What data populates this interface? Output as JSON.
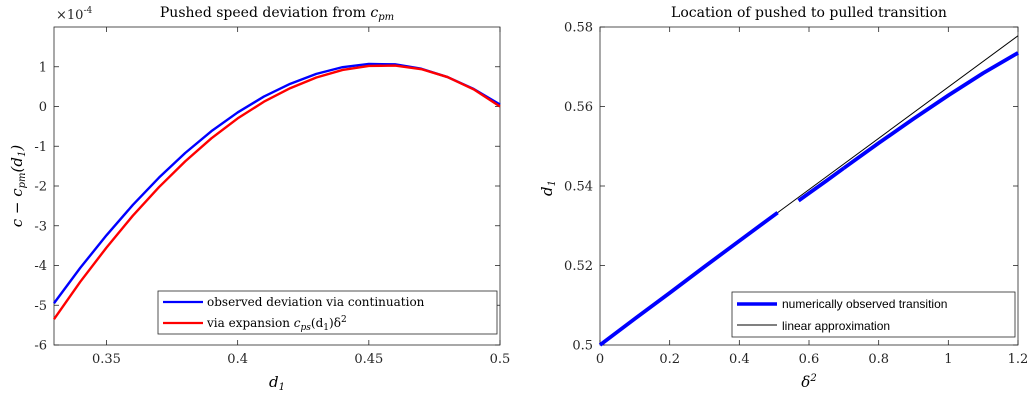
{
  "chart_data": [
    {
      "type": "line",
      "title": "Pushed speed deviation from c_pm",
      "title_main": "Pushed speed deviation from ",
      "title_math": "c",
      "title_sub": "pm",
      "xlabel": "d1",
      "xlabel_main": "d",
      "xlabel_sub": "1",
      "ylabel": "c − c_pm(d1)",
      "ylabel_parts": [
        "c − c",
        "pm",
        "(d",
        "1",
        ")"
      ],
      "exponent_label": "×10",
      "exponent_power": "-4",
      "xlim": [
        0.33,
        0.5
      ],
      "ylim": [
        -6,
        2
      ],
      "xticks": [
        0.35,
        0.4,
        0.45,
        0.5
      ],
      "xtick_labels": [
        "0.35",
        "0.4",
        "0.45",
        "0.5"
      ],
      "yticks": [
        -6,
        -5,
        -4,
        -3,
        -2,
        -1,
        0,
        1
      ],
      "ytick_labels": [
        "-6",
        "-5",
        "-4",
        "-3",
        "-2",
        "-1",
        "0",
        "1"
      ],
      "grid": false,
      "legend_position": "bottom-right",
      "series": [
        {
          "name": "observed deviation via continuation",
          "color": "#0000ff",
          "x": [
            0.33,
            0.34,
            0.35,
            0.36,
            0.37,
            0.38,
            0.39,
            0.4,
            0.41,
            0.42,
            0.43,
            0.44,
            0.45,
            0.46,
            0.47,
            0.48,
            0.49,
            0.5
          ],
          "y": [
            -4.95,
            -4.06,
            -3.24,
            -2.48,
            -1.79,
            -1.17,
            -0.62,
            -0.15,
            0.25,
            0.57,
            0.82,
            0.99,
            1.07,
            1.06,
            0.95,
            0.74,
            0.44,
            0.05
          ]
        },
        {
          "name": "via expansion c_ps(d1)δ²",
          "name_parts": [
            "via expansion ",
            "c",
            "ps",
            "(d",
            "1",
            ")δ",
            "2"
          ],
          "color": "#ff0000",
          "x": [
            0.33,
            0.34,
            0.35,
            0.36,
            0.37,
            0.38,
            0.39,
            0.4,
            0.41,
            0.42,
            0.43,
            0.44,
            0.45,
            0.46,
            0.47,
            0.48,
            0.49,
            0.5
          ],
          "y": [
            -5.35,
            -4.41,
            -3.55,
            -2.75,
            -2.03,
            -1.38,
            -0.8,
            -0.3,
            0.12,
            0.46,
            0.73,
            0.92,
            1.02,
            1.03,
            0.94,
            0.74,
            0.43,
            0.0
          ]
        }
      ]
    },
    {
      "type": "line",
      "title": "Location of pushed to pulled transition",
      "xlabel": "δ²",
      "xlabel_main": "δ",
      "xlabel_sup": "2",
      "ylabel": "d1",
      "ylabel_main": "d",
      "ylabel_sub": "1",
      "xlim": [
        0,
        1.2
      ],
      "ylim": [
        0.5,
        0.58
      ],
      "xticks": [
        0,
        0.2,
        0.4,
        0.6,
        0.8,
        1,
        1.2
      ],
      "xtick_labels": [
        "0",
        "0.2",
        "0.4",
        "0.6",
        "0.8",
        "1",
        "1.2"
      ],
      "yticks": [
        0.5,
        0.52,
        0.54,
        0.56,
        0.58
      ],
      "ytick_labels": [
        "0.5",
        "0.52",
        "0.54",
        "0.56",
        "0.58"
      ],
      "grid": false,
      "legend_position": "bottom-right",
      "series": [
        {
          "name": "numerically observed transition",
          "color": "#0000ff",
          "segments": [
            {
              "x": [
                0,
                0.1,
                0.2,
                0.3,
                0.4,
                0.51
              ],
              "y": [
                0.5,
                0.5066,
                0.5131,
                0.5197,
                0.5262,
                0.5333
              ]
            },
            {
              "x": [
                0.57,
                0.6,
                0.65,
                0.7
              ],
              "y": [
                0.5363,
                0.5382,
                0.5413,
                0.5445
              ]
            },
            {
              "x": [
                0.7,
                0.8,
                0.9,
                1.0,
                1.1,
                1.2
              ],
              "y": [
                0.5445,
                0.5508,
                0.5569,
                0.5628,
                0.5684,
                0.5735
              ]
            }
          ]
        },
        {
          "name": "linear approximation",
          "color": "#000000",
          "x": [
            0.51,
            1.2
          ],
          "y": [
            0.5333,
            0.5778
          ]
        }
      ]
    }
  ]
}
